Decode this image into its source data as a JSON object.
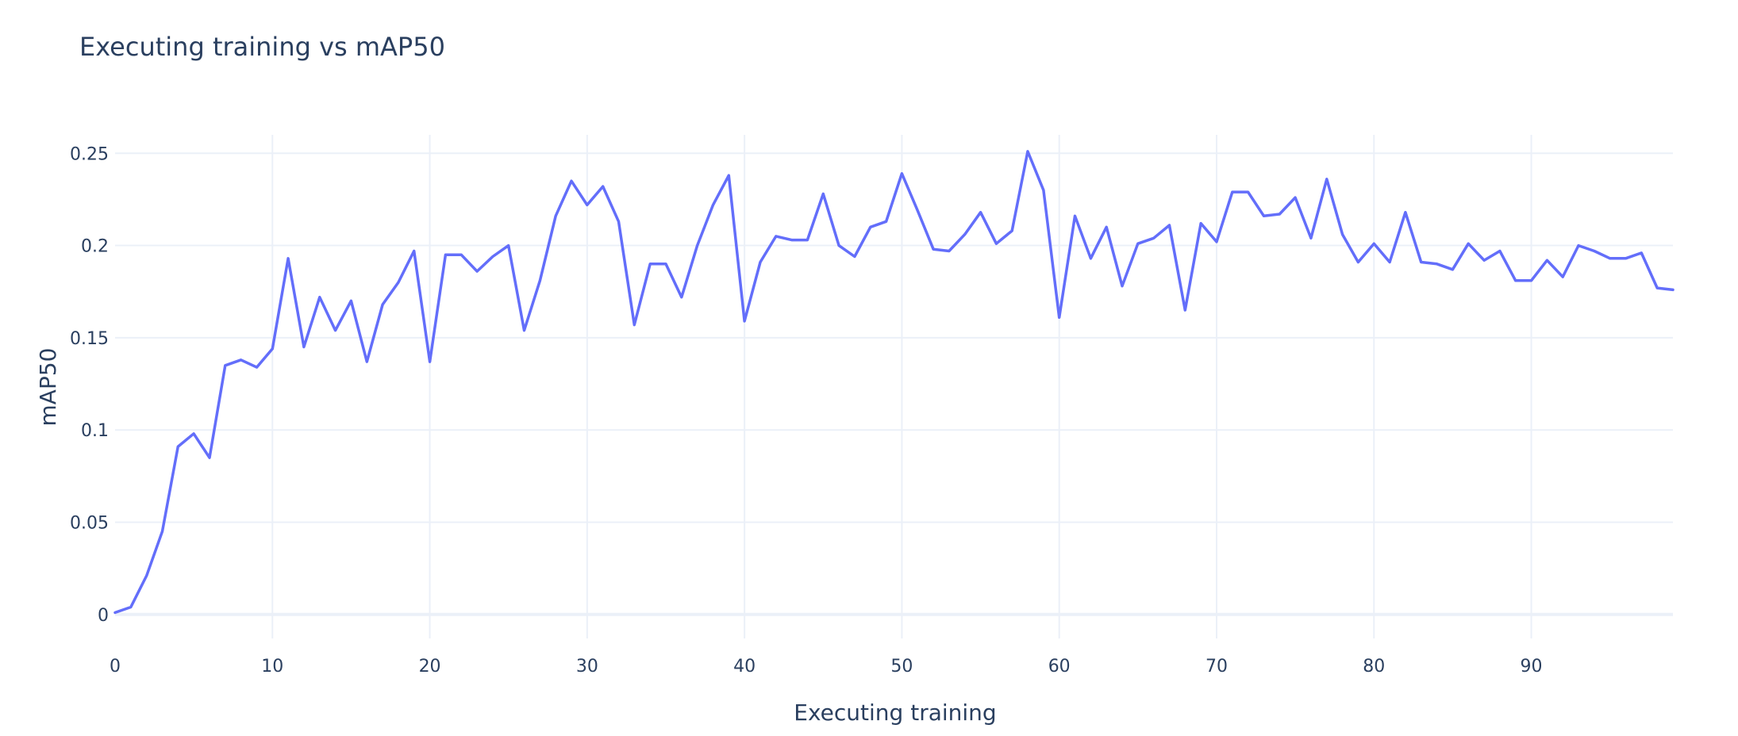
{
  "chart_data": {
    "type": "line",
    "title": "Executing training vs mAP50",
    "xlabel": "Executing training",
    "ylabel": "mAP50",
    "xlim": [
      0,
      99
    ],
    "ylim": [
      -0.013,
      0.26
    ],
    "x_ticks": [
      0,
      10,
      20,
      30,
      40,
      50,
      60,
      70,
      80,
      90
    ],
    "x_tick_labels": [
      "0",
      "10",
      "20",
      "30",
      "40",
      "50",
      "60",
      "70",
      "80",
      "90"
    ],
    "y_ticks": [
      0,
      0.05,
      0.1,
      0.15,
      0.2,
      0.25
    ],
    "y_tick_labels": [
      "0",
      "0.05",
      "0.1",
      "0.15",
      "0.2",
      "0.25"
    ],
    "grid": true,
    "line_color": "#636efa",
    "series": [
      {
        "x": [
          0,
          1,
          2,
          3,
          4,
          5,
          6,
          7,
          8,
          9,
          10,
          11,
          12,
          13,
          14,
          15,
          16,
          17,
          18,
          19,
          20,
          21,
          22,
          23,
          24,
          25,
          26,
          27,
          28,
          29,
          30,
          31,
          32,
          33,
          34,
          35,
          36,
          37,
          38,
          39,
          40,
          41,
          42,
          43,
          44,
          45,
          46,
          47,
          48,
          49,
          50,
          51,
          52,
          53,
          54,
          55,
          56,
          57,
          58,
          59,
          60,
          61,
          62,
          63,
          64,
          65,
          66,
          67,
          68,
          69,
          70,
          71,
          72,
          73,
          74,
          75,
          76,
          77,
          78,
          79,
          80,
          81,
          82,
          83,
          84,
          85,
          86,
          87,
          88,
          89,
          90,
          91,
          92,
          93,
          94,
          95,
          96,
          97,
          98,
          99
        ],
        "values": [
          0.001,
          0.004,
          0.021,
          0.045,
          0.091,
          0.098,
          0.085,
          0.135,
          0.138,
          0.134,
          0.144,
          0.193,
          0.145,
          0.172,
          0.154,
          0.17,
          0.137,
          0.168,
          0.18,
          0.197,
          0.137,
          0.195,
          0.195,
          0.186,
          0.194,
          0.2,
          0.154,
          0.181,
          0.216,
          0.235,
          0.222,
          0.232,
          0.213,
          0.157,
          0.19,
          0.19,
          0.172,
          0.2,
          0.222,
          0.238,
          0.159,
          0.191,
          0.205,
          0.203,
          0.203,
          0.228,
          0.2,
          0.194,
          0.21,
          0.213,
          0.239,
          0.219,
          0.198,
          0.197,
          0.206,
          0.218,
          0.201,
          0.208,
          0.251,
          0.23,
          0.161,
          0.216,
          0.193,
          0.21,
          0.178,
          0.201,
          0.204,
          0.211,
          0.165,
          0.212,
          0.202,
          0.229,
          0.229,
          0.216,
          0.217,
          0.226,
          0.204,
          0.236,
          0.206,
          0.191,
          0.201,
          0.191,
          0.218,
          0.191,
          0.19,
          0.187,
          0.201,
          0.192,
          0.197,
          0.181,
          0.181,
          0.192,
          0.183,
          0.2,
          0.197,
          0.193,
          0.193,
          0.196,
          0.177,
          0.176
        ]
      }
    ]
  }
}
